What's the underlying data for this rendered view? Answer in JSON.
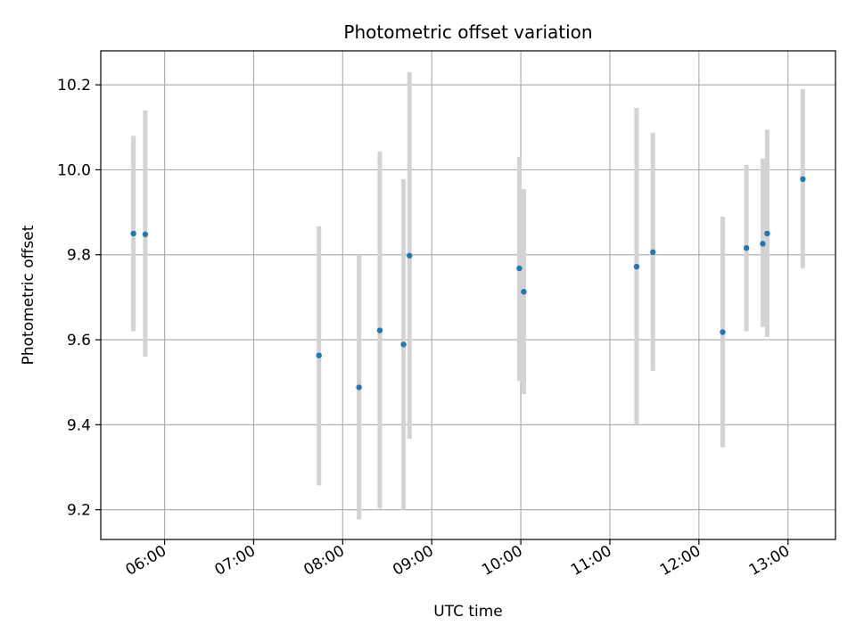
{
  "chart_data": {
    "type": "scatter",
    "title": "Photometric offset variation",
    "xlabel": "UTC time",
    "ylabel": "Photometric offset",
    "grid": true,
    "x_ticks": [
      "06:00",
      "07:00",
      "08:00",
      "09:00",
      "10:00",
      "11:00",
      "12:00",
      "13:00"
    ],
    "y_ticks": [
      "9.2",
      "9.4",
      "9.6",
      "9.8",
      "10.0",
      "10.2"
    ],
    "xlim": [
      "05:17",
      "13:32"
    ],
    "ylim": [
      9.13,
      10.28
    ],
    "colors": {
      "marker": "#1f77b4",
      "errorbar": "#d3d3d3",
      "grid": "#b0b0b0"
    },
    "points": [
      {
        "time": "05:39",
        "y": 9.85,
        "ylow": 9.62,
        "yhigh": 10.08
      },
      {
        "time": "05:47",
        "y": 9.848,
        "ylow": 9.56,
        "yhigh": 10.14
      },
      {
        "time": "07:44",
        "y": 9.563,
        "ylow": 9.257,
        "yhigh": 9.867
      },
      {
        "time": "08:11",
        "y": 9.488,
        "ylow": 9.177,
        "yhigh": 9.8
      },
      {
        "time": "08:25",
        "y": 9.622,
        "ylow": 9.203,
        "yhigh": 10.043
      },
      {
        "time": "08:41",
        "y": 9.589,
        "ylow": 9.2,
        "yhigh": 9.978
      },
      {
        "time": "08:45",
        "y": 9.798,
        "ylow": 9.367,
        "yhigh": 10.23
      },
      {
        "time": "09:59",
        "y": 9.768,
        "ylow": 9.503,
        "yhigh": 10.03
      },
      {
        "time": "10:02",
        "y": 9.713,
        "ylow": 9.472,
        "yhigh": 9.955
      },
      {
        "time": "11:18",
        "y": 9.772,
        "ylow": 9.4,
        "yhigh": 10.146
      },
      {
        "time": "11:29",
        "y": 9.806,
        "ylow": 9.527,
        "yhigh": 10.087
      },
      {
        "time": "12:16",
        "y": 9.618,
        "ylow": 9.347,
        "yhigh": 9.89
      },
      {
        "time": "12:32",
        "y": 9.816,
        "ylow": 9.62,
        "yhigh": 10.012
      },
      {
        "time": "12:43",
        "y": 9.826,
        "ylow": 9.63,
        "yhigh": 10.027
      },
      {
        "time": "12:46",
        "y": 9.85,
        "ylow": 9.606,
        "yhigh": 10.094
      },
      {
        "time": "13:10",
        "y": 9.978,
        "ylow": 9.768,
        "yhigh": 10.19
      }
    ]
  }
}
